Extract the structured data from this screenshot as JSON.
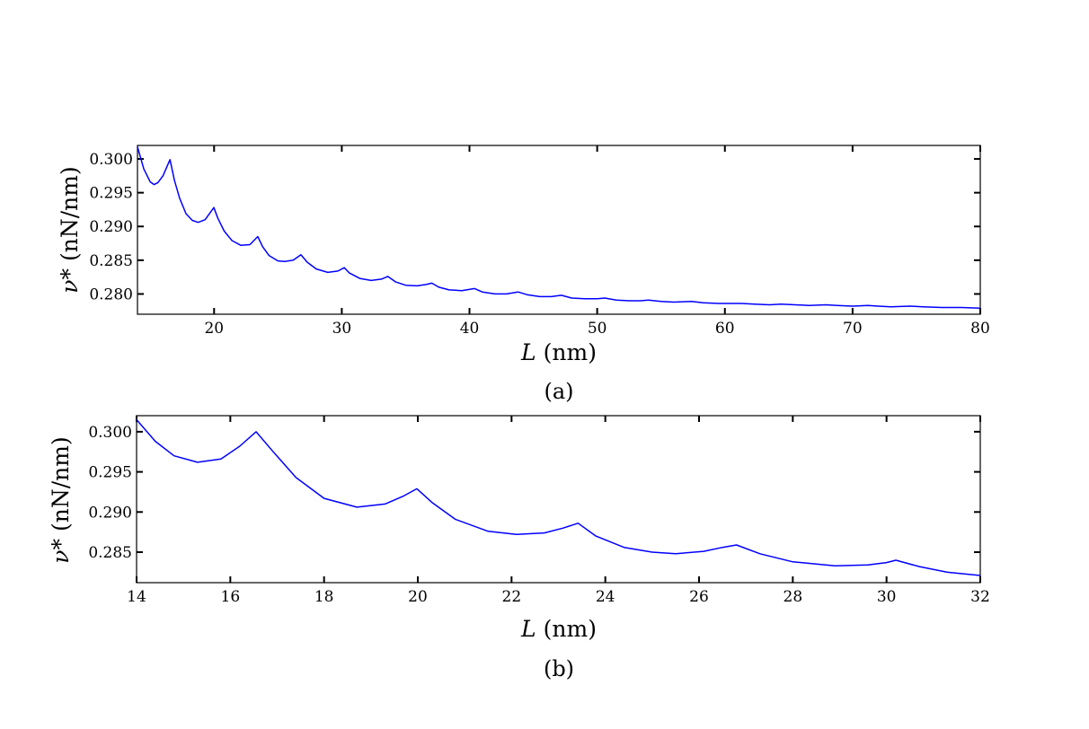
{
  "colors": {
    "line": "#0000ff",
    "axes": "#000000",
    "background": "#ffffff"
  },
  "chart_data": [
    {
      "type": "line",
      "caption": "(a)",
      "xlabel_var": "L",
      "xlabel_unit": "(nm)",
      "ylabel_var": "ν*",
      "ylabel_unit": "(nN/nm)",
      "xlim": [
        14,
        80
      ],
      "ylim": [
        0.277,
        0.302
      ],
      "grid": false,
      "xticks": [
        20,
        30,
        40,
        50,
        60,
        70,
        80
      ],
      "xtick_labels": [
        "20",
        "30",
        "40",
        "50",
        "60",
        "70",
        "80"
      ],
      "yticks": [
        0.28,
        0.285,
        0.29,
        0.295,
        0.3
      ],
      "ytick_labels": [
        "0.280",
        "0.285",
        "0.290",
        "0.295",
        "0.300"
      ],
      "series": [
        {
          "x": [
            14,
            14.5,
            15,
            15.3,
            15.6,
            16,
            16.55,
            16.9,
            17.3,
            17.8,
            18.3,
            18.75,
            19.3,
            19.98,
            20.3,
            20.8,
            21.4,
            22.1,
            22.8,
            23.42,
            23.8,
            24.3,
            25.0,
            25.55,
            26.2,
            26.8,
            27.3,
            28.0,
            28.9,
            29.7,
            30.2,
            30.6,
            31.4,
            32.3,
            33.1,
            33.6,
            34.2,
            35.0,
            35.9,
            36.6,
            37.05,
            37.6,
            38.4,
            39.4,
            40.4,
            41.0,
            42.0,
            42.9,
            43.8,
            44.5,
            45.5,
            46.4,
            47.2,
            48.0,
            49.0,
            50.0,
            50.6,
            51.5,
            52.5,
            53.4,
            54.0,
            55.0,
            56.0,
            57.4,
            58.3,
            59.5,
            60.7,
            61.3,
            62.3,
            63.5,
            64.4,
            65.5,
            66.6,
            67.9,
            68.8,
            70.0,
            71.2,
            72.0,
            73.0,
            74.5,
            75.5,
            77.0,
            78.5,
            80.0
          ],
          "y": [
            0.3018,
            0.2985,
            0.2966,
            0.2962,
            0.2965,
            0.2975,
            0.2999,
            0.2968,
            0.2942,
            0.2919,
            0.2909,
            0.2906,
            0.291,
            0.2928,
            0.2912,
            0.2893,
            0.2879,
            0.2872,
            0.2873,
            0.2885,
            0.287,
            0.2857,
            0.2849,
            0.2848,
            0.285,
            0.2858,
            0.2847,
            0.2837,
            0.2832,
            0.2834,
            0.2839,
            0.2831,
            0.2823,
            0.282,
            0.2822,
            0.2826,
            0.2818,
            0.2813,
            0.2812,
            0.2814,
            0.2816,
            0.281,
            0.2806,
            0.2805,
            0.2808,
            0.2803,
            0.28,
            0.28,
            0.2803,
            0.2799,
            0.2796,
            0.2796,
            0.2798,
            0.2794,
            0.2793,
            0.2793,
            0.2794,
            0.2791,
            0.279,
            0.279,
            0.2791,
            0.2789,
            0.2788,
            0.2789,
            0.2787,
            0.2786,
            0.2786,
            0.2786,
            0.2785,
            0.2784,
            0.2785,
            0.2784,
            0.2783,
            0.2784,
            0.2783,
            0.2782,
            0.2783,
            0.2782,
            0.2781,
            0.2782,
            0.2781,
            0.278,
            0.278,
            0.2779
          ]
        }
      ]
    },
    {
      "type": "line",
      "caption": "(b)",
      "xlabel_var": "L",
      "xlabel_unit": "(nm)",
      "ylabel_var": "ν*",
      "ylabel_unit": "(nN/nm)",
      "xlim": [
        14,
        32
      ],
      "ylim": [
        0.2812,
        0.302
      ],
      "grid": false,
      "xticks": [
        14,
        16,
        18,
        20,
        22,
        24,
        26,
        28,
        30,
        32
      ],
      "xtick_labels": [
        "14",
        "16",
        "18",
        "20",
        "22",
        "24",
        "26",
        "28",
        "30",
        "32"
      ],
      "yticks": [
        0.285,
        0.29,
        0.295,
        0.3
      ],
      "ytick_labels": [
        "0.285",
        "0.290",
        "0.295",
        "0.300"
      ],
      "series": [
        {
          "x": [
            14,
            14.4,
            14.8,
            15.3,
            15.8,
            16.2,
            16.55,
            16.9,
            17.4,
            18.0,
            18.7,
            19.3,
            19.7,
            19.98,
            20.3,
            20.8,
            21.5,
            22.1,
            22.7,
            23.1,
            23.42,
            23.8,
            24.4,
            25.0,
            25.5,
            26.1,
            26.5,
            26.8,
            27.3,
            28.0,
            28.9,
            29.6,
            30.0,
            30.2,
            30.7,
            31.3,
            32.0
          ],
          "y": [
            0.3015,
            0.2988,
            0.297,
            0.2962,
            0.2966,
            0.2982,
            0.3,
            0.2976,
            0.2943,
            0.2917,
            0.2906,
            0.291,
            0.292,
            0.2929,
            0.2912,
            0.2891,
            0.2876,
            0.2872,
            0.2874,
            0.288,
            0.2886,
            0.287,
            0.2856,
            0.285,
            0.2848,
            0.2851,
            0.2856,
            0.2859,
            0.2848,
            0.2838,
            0.2833,
            0.2834,
            0.2837,
            0.284,
            0.2832,
            0.2825,
            0.2821
          ]
        }
      ]
    }
  ]
}
